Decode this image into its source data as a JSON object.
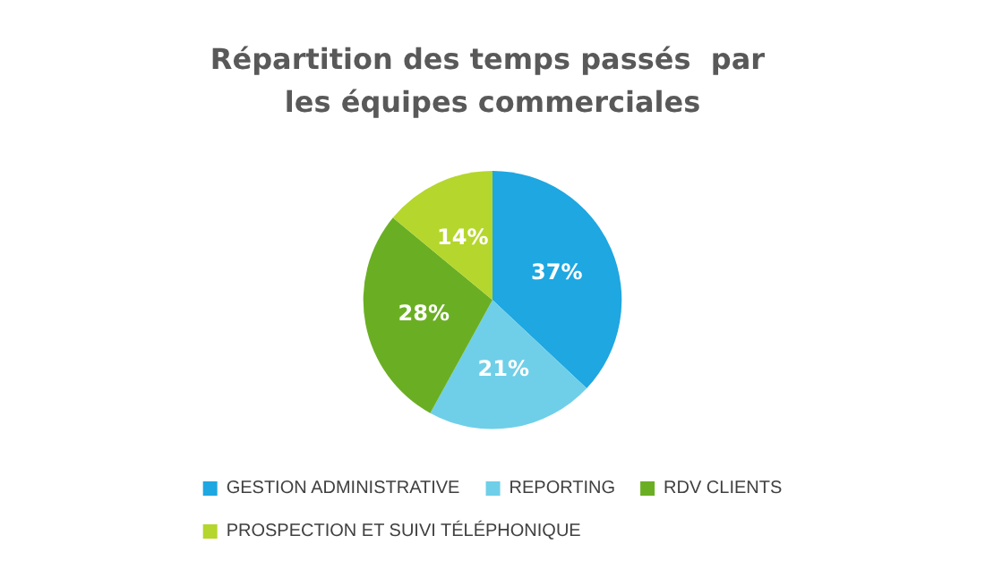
{
  "chart_data": {
    "type": "pie",
    "title": "Répartition des temps passés  par les équipes commerciales",
    "categories": [
      "GESTION ADMINISTRATIVE",
      "REPORTING",
      "RDV CLIENTS",
      "PROSPECTION ET SUIVI TÉLÉPHONIQUE"
    ],
    "values": [
      37,
      21,
      28,
      14
    ],
    "colors": [
      "#1ea7e1",
      "#6fcfe8",
      "#6aaf23",
      "#b5d62c"
    ],
    "value_labels": [
      "37%",
      "21%",
      "28%",
      "14%"
    ],
    "legend": "bottom"
  }
}
